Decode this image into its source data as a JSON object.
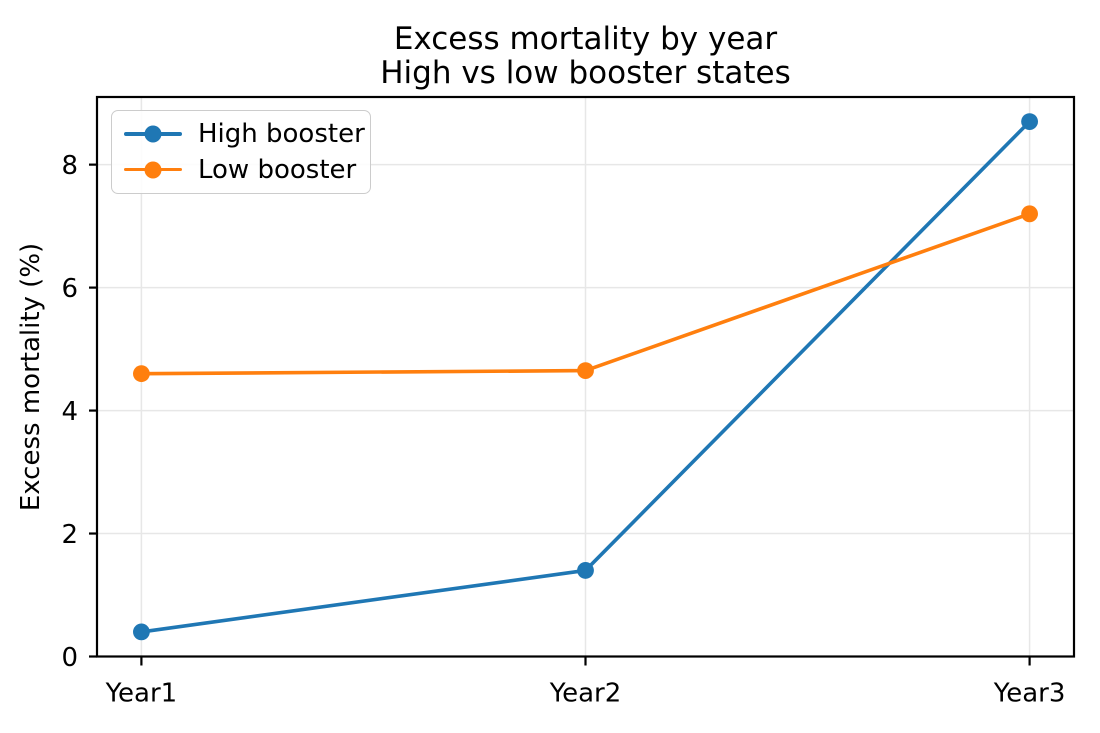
{
  "chart_data": {
    "type": "line",
    "title": "Excess mortality by year",
    "subtitle": "High vs low booster states",
    "xlabel": "",
    "ylabel": "Excess mortality (%)",
    "categories": [
      "Year1",
      "Year2",
      "Year3"
    ],
    "series": [
      {
        "name": "High booster",
        "color": "#1f77b4",
        "values": [
          0.4,
          1.4,
          8.7
        ]
      },
      {
        "name": "Low booster",
        "color": "#ff7f0e",
        "values": [
          4.6,
          4.65,
          7.2
        ]
      }
    ],
    "yticks": [
      0,
      2,
      4,
      6,
      8
    ],
    "ylim": [
      0,
      9.1
    ],
    "grid": true,
    "legend": {
      "position": "upper left",
      "entries": [
        "High booster",
        "Low booster"
      ]
    },
    "colors": {
      "grid": "#e7e7e7",
      "spine": "#000000",
      "text": "#000000",
      "legend_border": "#cccccc"
    }
  }
}
